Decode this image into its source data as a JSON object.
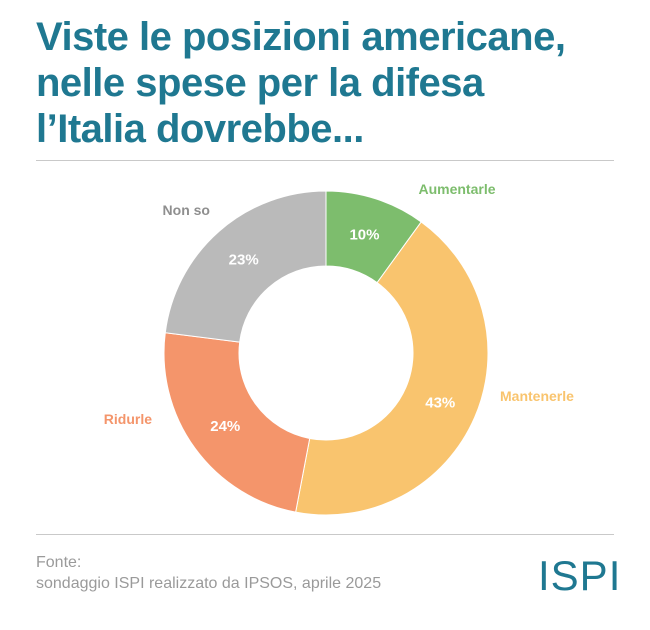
{
  "title": {
    "line1": "Viste le posizioni americane,",
    "line2": "nelle spese per la difesa",
    "line3": "l’Italia dovrebbe..."
  },
  "colors": {
    "title": "#1f7891",
    "aumentarle": "#7dbd6d",
    "mantenerle": "#f9c46e",
    "ridurle": "#f4956b",
    "non_so": "#bababa"
  },
  "chart_data": {
    "type": "pie",
    "variant": "donut",
    "title": "Viste le posizioni americane, nelle spese per la difesa l’Italia dovrebbe...",
    "categories": [
      "Aumentarle",
      "Mantenerle",
      "Ridurle",
      "Non so"
    ],
    "values": [
      10,
      43,
      24,
      23
    ],
    "value_labels": [
      "10%",
      "43%",
      "24%",
      "23%"
    ],
    "unit": "%"
  },
  "source": {
    "label": "Fonte:",
    "text": "sondaggio ISPI realizzato da IPSOS, aprile 2025"
  },
  "logo": {
    "text": "ISPI"
  }
}
